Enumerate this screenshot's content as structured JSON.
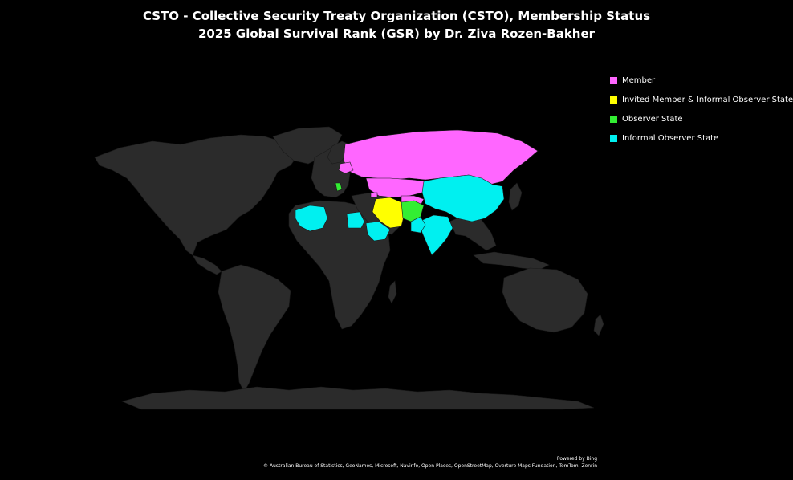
{
  "title": {
    "line1": "CSTO - Collective Security Treaty Organization (CSTO), Membership Status",
    "line2": "2025 Global Survival Rank (GSR) by Dr. Ziva Rozen-Bakher"
  },
  "legend": {
    "items": [
      {
        "label": "Member",
        "color": "#ff66ff"
      },
      {
        "label": "Invited Member & Informal Observer State",
        "color": "#ffff00"
      },
      {
        "label": "Observer State",
        "color": "#33ee33"
      },
      {
        "label": "Informal Observer State",
        "color": "#00f0f0"
      }
    ],
    "placement": "top-right"
  },
  "map": {
    "land_color": "#2b2b2b",
    "background_color": "#000000",
    "highlighted_regions": [
      {
        "status": "Member",
        "regions": [
          "Russia",
          "Kazakhstan",
          "Belarus",
          "Armenia",
          "Kyrgyzstan",
          "Tajikistan"
        ]
      },
      {
        "status": "Invited Member & Informal Observer State",
        "regions": [
          "Iran"
        ]
      },
      {
        "status": "Observer State",
        "regions": [
          "Afghanistan",
          "Serbia"
        ]
      },
      {
        "status": "Informal Observer State",
        "regions": [
          "China",
          "India",
          "Pakistan",
          "Mongolia",
          "Algeria",
          "Egypt",
          "Saudi Arabia"
        ]
      }
    ]
  },
  "attribution": {
    "powered_by": "Powered by Bing",
    "sources": "© Australian Bureau of Statistics, GeoNames, Microsoft, Navinfo, Open Places, OpenStreetMap, Overture Maps Fundation, TomTom, Zenrin"
  }
}
